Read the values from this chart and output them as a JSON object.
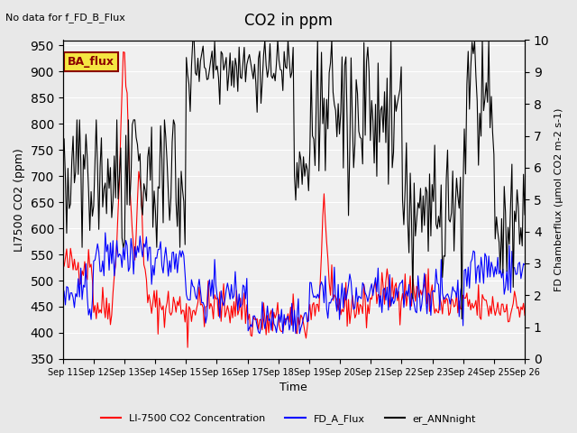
{
  "title": "CO2 in ppm",
  "top_left_text": "No data for f_FD_B_Flux",
  "box_label": "BA_flux",
  "ylabel_left": "LI7500 CO2 (ppm)",
  "ylabel_right": "FD Chamberflux (μmol CO2 m-2 s-1)",
  "xlabel": "Time",
  "ylim_left": [
    350,
    960
  ],
  "ylim_right": [
    0.0,
    10.0
  ],
  "yticks_left": [
    350,
    400,
    450,
    500,
    550,
    600,
    650,
    700,
    750,
    800,
    850,
    900,
    950
  ],
  "yticks_right": [
    0.0,
    1.0,
    2.0,
    3.0,
    4.0,
    5.0,
    6.0,
    7.0,
    8.0,
    9.0,
    10.0
  ],
  "xtick_labels": [
    "Sep 11",
    "Sep 12",
    "Sep 13",
    "Sep 14",
    "Sep 15",
    "Sep 16",
    "Sep 17",
    "Sep 18",
    "Sep 19",
    "Sep 20",
    "Sep 21",
    "Sep 22",
    "Sep 23",
    "Sep 24",
    "Sep 25",
    "Sep 26"
  ],
  "legend_labels": [
    "LI-7500 CO2 Concentration",
    "FD_A_Flux",
    "er_ANNnight"
  ],
  "background_color": "#e8e8e8",
  "plot_bg_color": "#f0f0f0",
  "n_points": 360
}
